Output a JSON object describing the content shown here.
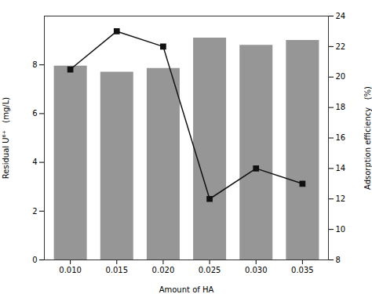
{
  "chart_data": {
    "type": "bar",
    "xlabel": "Amount of HA",
    "ylabel": "Residual U⁶⁺   (mg/L)",
    "y2label": "Adsorption efficiency   (%)",
    "x": [
      0.01,
      0.015,
      0.02,
      0.025,
      0.03,
      0.035
    ],
    "xlim": [
      0.0072,
      0.0378
    ],
    "xticks": [
      {
        "value": 0.01,
        "label": "0.010"
      },
      {
        "value": 0.015,
        "label": "0.015"
      },
      {
        "value": 0.02,
        "label": "0.020"
      },
      {
        "value": 0.025,
        "label": "0.025"
      },
      {
        "value": 0.03,
        "label": "0.030"
      },
      {
        "value": 0.035,
        "label": "0.035"
      }
    ],
    "ylim": [
      0,
      10
    ],
    "yticks": [
      0,
      2,
      4,
      6,
      8
    ],
    "y2lim": [
      8,
      24
    ],
    "y2ticks": [
      8,
      10,
      12,
      14,
      16,
      18,
      20,
      22,
      24
    ],
    "grid": false,
    "series": [
      {
        "type": "bar",
        "color": "#969696",
        "values": [
          7.95,
          7.7,
          7.85,
          9.1,
          8.8,
          9.0
        ]
      },
      {
        "type": "line",
        "axis": "y2",
        "color": "#111111",
        "marker": "square",
        "values": [
          20.5,
          23.0,
          22.0,
          12.0,
          14.0,
          13.0
        ]
      }
    ]
  }
}
